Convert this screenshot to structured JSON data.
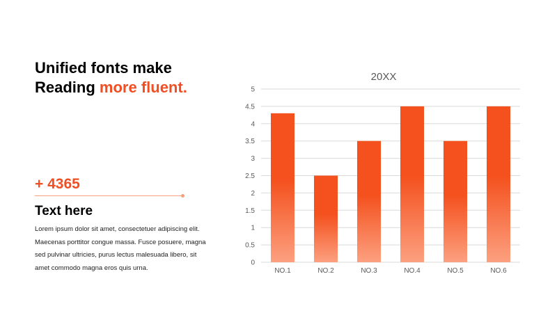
{
  "headline": {
    "line1": "Unified fonts make",
    "line2_prefix": "Reading ",
    "line2_accent": "more fluent."
  },
  "stat": {
    "value": "+ 4365"
  },
  "sub_heading": "Text here",
  "body_text": "Lorem ipsum dolor sit amet, consectetuer adipiscing elit. Maecenas porttitor congue massa. Fusce posuere, magna sed pulvinar ultricies, purus lectus malesuada libero, sit amet commodo magna eros quis urna.",
  "colors": {
    "accent": "#f04e23",
    "bar_top": "#f4511e",
    "bar_bottom": "#fca080",
    "gridline": "#d9d9d9",
    "axis_text": "#595959"
  },
  "chart_data": {
    "type": "bar",
    "title": "20XX",
    "categories": [
      "NO.1",
      "NO.2",
      "NO.3",
      "NO.4",
      "NO.5",
      "NO.6"
    ],
    "values": [
      4.3,
      2.5,
      3.5,
      4.5,
      3.5,
      4.5
    ],
    "ylim": [
      0,
      5
    ],
    "yticks": [
      "0",
      "0.5",
      "1",
      "1.5",
      "2",
      "2.5",
      "3",
      "3.5",
      "4",
      "4.5",
      "5"
    ],
    "grid": true,
    "legend": "none"
  }
}
